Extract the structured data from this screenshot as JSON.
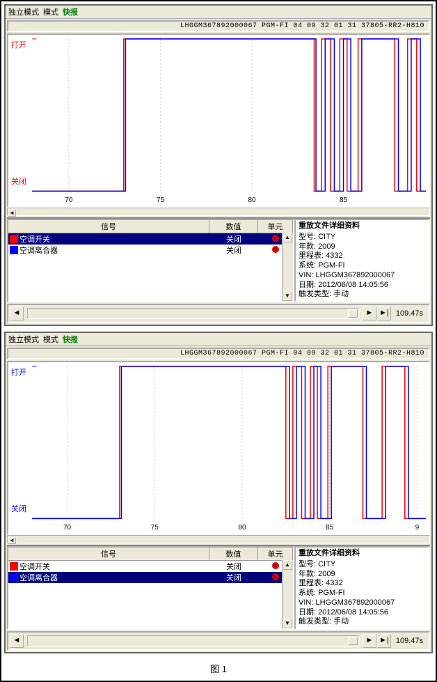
{
  "caption": "图 1",
  "panels": [
    {
      "menu": {
        "m1": "独立模式",
        "m2": "模式",
        "m3": "快报"
      },
      "header": "LHGGM367892000067  PGM-FI  04 09 32 01 31  37805-RR2-H810",
      "chart": {
        "y_open": "打开",
        "y_close": "关闭",
        "y_color_open": "#ff0000",
        "y_color_close": "#ff0000",
        "bg": "#ffffff",
        "grid_color": "#cccccc",
        "grid_x": [
          70,
          75,
          80,
          85
        ],
        "xlim": [
          68,
          89.5
        ],
        "ylim": [
          0,
          1
        ],
        "x_ticks": [
          70,
          75,
          80,
          85
        ],
        "series": [
          {
            "color": "#ff0000",
            "width": 1.5,
            "segments": [
              [
                68,
                0
              ],
              [
                73,
                0
              ],
              [
                73,
                1
              ],
              [
                83.4,
                1
              ],
              [
                83.4,
                0
              ],
              [
                83.8,
                0
              ],
              [
                83.8,
                1
              ],
              [
                84.3,
                1
              ],
              [
                84.3,
                0
              ],
              [
                84.8,
                0
              ],
              [
                84.8,
                1
              ],
              [
                85.2,
                1
              ],
              [
                85.2,
                0
              ],
              [
                85.8,
                0
              ],
              [
                85.8,
                1
              ],
              [
                87.8,
                1
              ],
              [
                87.8,
                0
              ],
              [
                88.5,
                0
              ],
              [
                88.5,
                1
              ],
              [
                89,
                1
              ],
              [
                89,
                0
              ],
              [
                89.5,
                0
              ]
            ]
          },
          {
            "color": "#0000ff",
            "width": 1.5,
            "segments": [
              [
                68,
                0
              ],
              [
                73.1,
                0
              ],
              [
                73.1,
                1
              ],
              [
                83.5,
                1
              ],
              [
                83.5,
                0
              ],
              [
                84.0,
                0
              ],
              [
                84.0,
                1
              ],
              [
                84.5,
                1
              ],
              [
                84.5,
                0
              ],
              [
                85.0,
                0
              ],
              [
                85.0,
                1
              ],
              [
                85.4,
                1
              ],
              [
                85.4,
                0
              ],
              [
                86.0,
                0
              ],
              [
                86.0,
                1
              ],
              [
                88.0,
                1
              ],
              [
                88.0,
                0
              ],
              [
                88.7,
                0
              ],
              [
                88.7,
                1
              ],
              [
                89.2,
                1
              ],
              [
                89.2,
                0
              ],
              [
                89.5,
                0
              ]
            ]
          }
        ]
      },
      "table": {
        "h_sig": "信号",
        "h_val": "数值",
        "h_unit": "单元",
        "rows": [
          {
            "sq": "#ff0000",
            "name": "空调开关",
            "val": "关闭",
            "dot": true,
            "sel": true
          },
          {
            "sq": "#0000ff",
            "name": "空调离合器",
            "val": "关闭",
            "dot": true,
            "sel": false
          }
        ]
      },
      "info": {
        "title": "重放文件详细资料",
        "lines": [
          "型号:  CITY",
          "年款:  2009",
          "里程表:    4332",
          "系统:  PGM-FI",
          "VIN:  LHGGM367892000067",
          "日期:  2012/06/08 14:05:56",
          "触发类型:  手动"
        ]
      },
      "time": "109.47s"
    },
    {
      "menu": {
        "m1": "独立模式",
        "m2": "模式",
        "m3": "快报"
      },
      "header": "LHGGM367892000067  PGM-FI  04 09 32 01 31  37805-RR2-H810",
      "chart": {
        "y_open": "打开",
        "y_close": "关闭",
        "y_color_open": "#0000ff",
        "y_color_close": "#0000ff",
        "bg": "#ffffff",
        "grid_color": "#cccccc",
        "grid_x": [
          70,
          75,
          80,
          85,
          90
        ],
        "xlim": [
          68,
          90.5
        ],
        "ylim": [
          0,
          1
        ],
        "x_ticks": [
          70,
          75,
          80,
          85,
          "9"
        ],
        "series": [
          {
            "color": "#ff0000",
            "width": 1.5,
            "segments": [
              [
                68,
                0
              ],
              [
                73,
                0
              ],
              [
                73,
                1
              ],
              [
                82.5,
                1
              ],
              [
                82.5,
                0
              ],
              [
                82.9,
                0
              ],
              [
                82.9,
                1
              ],
              [
                83.4,
                1
              ],
              [
                83.4,
                0
              ],
              [
                83.9,
                0
              ],
              [
                83.9,
                1
              ],
              [
                84.3,
                1
              ],
              [
                84.3,
                0
              ],
              [
                84.9,
                0
              ],
              [
                84.9,
                1
              ],
              [
                86.9,
                1
              ],
              [
                86.9,
                0
              ],
              [
                88.0,
                0
              ],
              [
                88.0,
                1
              ],
              [
                89.3,
                1
              ],
              [
                89.3,
                0
              ],
              [
                90.5,
                0
              ]
            ]
          },
          {
            "color": "#0000ff",
            "width": 1.5,
            "segments": [
              [
                68,
                0
              ],
              [
                73.1,
                0
              ],
              [
                73.1,
                1
              ],
              [
                82.7,
                1
              ],
              [
                82.7,
                0
              ],
              [
                83.1,
                0
              ],
              [
                83.1,
                1
              ],
              [
                83.6,
                1
              ],
              [
                83.6,
                0
              ],
              [
                84.1,
                0
              ],
              [
                84.1,
                1
              ],
              [
                84.5,
                1
              ],
              [
                84.5,
                0
              ],
              [
                85.1,
                0
              ],
              [
                85.1,
                1
              ],
              [
                87.1,
                1
              ],
              [
                87.1,
                0
              ],
              [
                88.2,
                0
              ],
              [
                88.2,
                1
              ],
              [
                89.5,
                1
              ],
              [
                89.5,
                0
              ],
              [
                90.5,
                0
              ]
            ]
          }
        ]
      },
      "table": {
        "h_sig": "信号",
        "h_val": "数值",
        "h_unit": "单元",
        "rows": [
          {
            "sq": "#ff0000",
            "name": "空调开关",
            "val": "关闭",
            "dot": true,
            "sel": false
          },
          {
            "sq": "#0000ff",
            "name": "空调离合器",
            "val": "关闭",
            "dot": true,
            "sel": true
          }
        ]
      },
      "info": {
        "title": "重放文件详细资料",
        "lines": [
          "型号:  CITY",
          "年款:  2009",
          "里程表:    4332",
          "系统:  PGM-FI",
          "VIN:  LHGGM367892000067",
          "日期:  2012/06/08 14:05:56",
          "触发类型:  手动"
        ]
      },
      "time": "109.47s"
    }
  ]
}
